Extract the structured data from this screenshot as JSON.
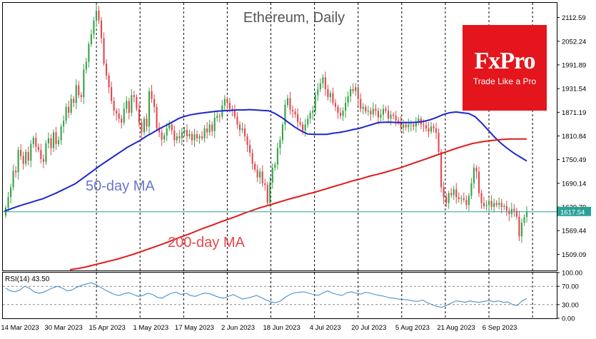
{
  "chart_data": {
    "type": "candlestick",
    "title": "Ethereum, Daily",
    "colors": {
      "up": "#36a34a",
      "down": "#e0484e",
      "ma50": "#1f27c8",
      "ma200": "#e01b1b",
      "rsi": "#3a86c8",
      "price_line": "#2aa198"
    },
    "y_ticks": [
      "2112.59",
      "2052.24",
      "1991.89",
      "1931.54",
      "1871.19",
      "1810.84",
      "1750.49",
      "1690.14",
      "1629.79",
      "1569.44",
      "1509.09"
    ],
    "y_range": [
      1468,
      2150
    ],
    "x_ticks": [
      "14 Mar 2023",
      "30 Mar 2023",
      "15 Apr 2023",
      "1 May 2023",
      "17 May 2023",
      "2 Jun 2023",
      "18 Jun 2023",
      "4 Jul 2023",
      "20 Jul 2023",
      "5 Aug 2023",
      "21 Aug 2023",
      "6 Sep 2023"
    ],
    "current_price": "1617.54",
    "current_price_value": 1617.54,
    "annotations": {
      "ma50": "50-day MA",
      "ma200": "200-day MA"
    },
    "series": [
      {
        "name": "50-day MA",
        "values": [
          1619,
          1625,
          1631,
          1636,
          1641,
          1646,
          1651,
          1658,
          1665,
          1673,
          1681,
          1689,
          1701,
          1713,
          1725,
          1737,
          1748,
          1759,
          1770,
          1781,
          1790,
          1799,
          1810,
          1819,
          1829,
          1837,
          1846,
          1855,
          1861,
          1865,
          1868,
          1870,
          1872,
          1874,
          1875,
          1876,
          1877,
          1877,
          1878,
          1877,
          1876,
          1875,
          1868,
          1858,
          1846,
          1834,
          1824,
          1816,
          1815,
          1815,
          1815,
          1818,
          1820,
          1823,
          1827,
          1830,
          1835,
          1840,
          1845,
          1846,
          1846,
          1845,
          1845,
          1845,
          1846,
          1848,
          1852,
          1858,
          1865,
          1870,
          1872,
          1870,
          1868,
          1860,
          1844,
          1826,
          1808,
          1792,
          1779,
          1767,
          1757,
          1747
        ]
      },
      {
        "name": "200-day MA",
        "values": [
          1470,
          1473,
          1477,
          1482,
          1487,
          1492,
          1497,
          1503,
          1509,
          1516,
          1523,
          1530,
          1537,
          1545,
          1553,
          1560,
          1568,
          1576,
          1583,
          1591,
          1598,
          1605,
          1613,
          1620,
          1627,
          1633,
          1639,
          1645,
          1651,
          1656,
          1662,
          1667,
          1673,
          1679,
          1685,
          1691,
          1697,
          1702,
          1708,
          1713,
          1718,
          1724,
          1730,
          1737,
          1744,
          1751,
          1758,
          1765,
          1772,
          1779,
          1785,
          1791,
          1795,
          1798,
          1800,
          1802,
          1803,
          1803,
          1803
        ]
      }
    ],
    "candles_close": [
      1628,
      1655,
      1680,
      1722,
      1718,
      1775,
      1760,
      1740,
      1770,
      1748,
      1790,
      1806,
      1783,
      1775,
      1752,
      1745,
      1792,
      1805,
      1780,
      1820,
      1790,
      1800,
      1835,
      1850,
      1885,
      1870,
      1905,
      1895,
      1940,
      1915,
      1910,
      1980,
      2000,
      2045,
      2070,
      2105,
      2130,
      2105,
      2060,
      1995,
      1965,
      1935,
      1900,
      1875,
      1868,
      1855,
      1845,
      1880,
      1900,
      1870,
      1915,
      1910,
      1880,
      1845,
      1820,
      1855,
      1835,
      1925,
      1905,
      1885,
      1830,
      1820,
      1802,
      1812,
      1830,
      1840,
      1825,
      1800,
      1810,
      1805,
      1820,
      1826,
      1810,
      1816,
      1800,
      1815,
      1805,
      1810,
      1805,
      1830,
      1820,
      1840,
      1823,
      1857,
      1862,
      1860,
      1888,
      1905,
      1895,
      1880,
      1875,
      1860,
      1840,
      1826,
      1830,
      1810,
      1788,
      1768,
      1740,
      1725,
      1705,
      1720,
      1690,
      1686,
      1640,
      1692,
      1730,
      1738,
      1780,
      1800,
      1840,
      1890,
      1907,
      1877,
      1873,
      1866,
      1846,
      1840,
      1825,
      1840,
      1855,
      1870,
      1875,
      1915,
      1930,
      1945,
      1960,
      1930,
      1910,
      1920,
      1895,
      1885,
      1870,
      1862,
      1875,
      1895,
      1912,
      1930,
      1925,
      1935,
      1905,
      1880,
      1885,
      1873,
      1875,
      1866,
      1880,
      1875,
      1858,
      1865,
      1880,
      1875,
      1855,
      1865,
      1862,
      1850,
      1845,
      1832,
      1840,
      1833,
      1840,
      1840,
      1835,
      1845,
      1855,
      1840,
      1838,
      1830,
      1822,
      1835,
      1830,
      1819,
      1770,
      1680,
      1655,
      1640,
      1665,
      1660,
      1675,
      1655,
      1650,
      1652,
      1648,
      1635,
      1658,
      1690,
      1730,
      1720,
      1665,
      1640,
      1632,
      1635,
      1645,
      1630,
      1640,
      1635,
      1640,
      1630,
      1632,
      1620,
      1612,
      1625,
      1620,
      1605,
      1555,
      1590,
      1604,
      1617.54
    ],
    "rsi": {
      "label": "RSI(14) 43.50",
      "period": 14,
      "value": 43.5,
      "y_ticks": [
        "100.00",
        "70.00",
        "30.00",
        "0.00"
      ],
      "levels": [
        70,
        30
      ],
      "values": [
        66,
        60,
        58,
        62,
        70,
        66,
        58,
        55,
        57,
        62,
        67,
        70,
        66,
        60,
        62,
        68,
        72,
        75,
        78,
        74,
        68,
        62,
        57,
        52,
        50,
        54,
        56,
        52,
        48,
        50,
        55,
        52,
        46,
        44,
        50,
        55,
        57,
        52,
        55,
        50,
        48,
        52,
        55,
        54,
        50,
        46,
        44,
        48,
        52,
        47,
        42,
        44,
        47,
        50,
        45,
        40,
        36,
        34,
        38,
        46,
        52,
        56,
        57,
        58,
        55,
        52,
        50,
        56,
        60,
        55,
        52,
        50,
        56,
        58,
        55,
        53,
        57,
        55,
        52,
        50,
        48,
        45,
        44,
        42,
        41,
        40,
        38,
        37,
        40,
        34,
        30,
        26,
        24,
        28,
        33,
        38,
        37,
        35,
        38,
        36,
        35,
        37,
        39,
        36,
        38,
        35,
        36,
        30,
        28,
        38,
        43.5
      ]
    }
  },
  "logo": {
    "brand": "FxPro",
    "tagline": "Trade Like a Pro"
  }
}
